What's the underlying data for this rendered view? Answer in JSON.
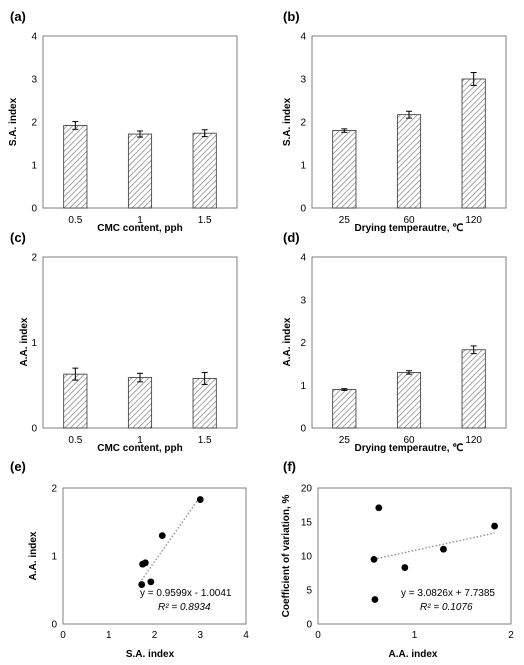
{
  "chart_data": [
    {
      "panel": "(a)",
      "type": "bar",
      "categories": [
        "0.5",
        "1",
        "1.5"
      ],
      "values": [
        1.92,
        1.72,
        1.74
      ],
      "errors": [
        0.09,
        0.07,
        0.08
      ],
      "xlabel": "CMC content, pph",
      "ylabel": "S.A. index",
      "ylim": [
        0,
        4
      ],
      "yticks": [
        "0",
        "1",
        "2",
        "3",
        "4"
      ]
    },
    {
      "panel": "(b)",
      "type": "bar",
      "categories": [
        "25",
        "60",
        "120"
      ],
      "values": [
        1.8,
        2.17,
        3.0
      ],
      "errors": [
        0.04,
        0.08,
        0.15
      ],
      "xlabel": "Drying temperautre, ℃",
      "ylabel": "S.A. index",
      "ylim": [
        0,
        4
      ],
      "yticks": [
        "0",
        "1",
        "2",
        "3",
        "4"
      ]
    },
    {
      "panel": "(c)",
      "type": "bar",
      "categories": [
        "0.5",
        "1",
        "1.5"
      ],
      "values": [
        0.63,
        0.59,
        0.58
      ],
      "errors": [
        0.07,
        0.05,
        0.07
      ],
      "xlabel": "CMC content, pph",
      "ylabel": "A.A. index",
      "ylim": [
        0,
        2
      ],
      "yticks": [
        "0",
        "1",
        "2"
      ]
    },
    {
      "panel": "(d)",
      "type": "bar",
      "categories": [
        "25",
        "60",
        "120"
      ],
      "values": [
        0.9,
        1.3,
        1.83
      ],
      "errors": [
        0.02,
        0.04,
        0.09
      ],
      "xlabel": "Drying temperautre, ℃",
      "ylabel": "A.A. index",
      "ylim": [
        0,
        4
      ],
      "yticks": [
        "0",
        "1",
        "2",
        "3",
        "4"
      ]
    },
    {
      "panel": "(e)",
      "type": "scatter",
      "x": [
        1.72,
        1.74,
        1.8,
        1.92,
        2.17,
        3.0
      ],
      "y": [
        0.58,
        0.88,
        0.9,
        0.62,
        1.3,
        1.83
      ],
      "trendline": {
        "slope": 0.9599,
        "intercept": -1.0041
      },
      "equation": "y = 0.9599x - 1.0041",
      "r2": "R² = 0.8934",
      "xlabel": "S.A. index",
      "ylabel": "A.A. index",
      "xlim": [
        0,
        4
      ],
      "ylim": [
        0,
        2
      ],
      "xticks": [
        "0",
        "1",
        "2",
        "3",
        "4"
      ],
      "yticks": [
        "0",
        "1",
        "2"
      ]
    },
    {
      "panel": "(f)",
      "type": "scatter",
      "x": [
        0.58,
        0.63,
        0.9,
        1.3,
        1.83,
        0.59
      ],
      "y": [
        9.5,
        17.1,
        8.3,
        11.0,
        14.4,
        3.6
      ],
      "trendline": {
        "slope": 3.0826,
        "intercept": 7.7385
      },
      "equation": "y = 3.0826x + 7.7385",
      "r2": "R² = 0.1076",
      "xlabel": "A.A. index",
      "ylabel": "Coefficient of variation, %",
      "xlim": [
        0,
        2
      ],
      "ylim": [
        0,
        20
      ],
      "xticks": [
        "0",
        "1",
        "2"
      ],
      "yticks": [
        "0",
        "5",
        "10",
        "15",
        "20"
      ]
    }
  ]
}
